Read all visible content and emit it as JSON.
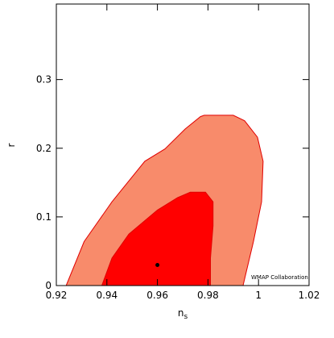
{
  "chart_data": {
    "type": "contour",
    "xlabel": "n",
    "xlabel_sub": "s",
    "ylabel": "r",
    "annotation": "WMAP Collaboration",
    "xlim": [
      0.92,
      1.02
    ],
    "ylim": [
      0,
      0.41
    ],
    "xticks": [
      0.92,
      0.94,
      0.96,
      0.98,
      1,
      1.02
    ],
    "yticks": [
      0,
      0.1,
      0.2,
      0.3
    ],
    "series": [
      {
        "color": "#f88b6b",
        "x": [
          0.9239,
          0.931,
          0.942,
          0.955,
          0.963,
          0.971,
          0.977,
          0.9785,
          0.99,
          0.9945,
          0.9996,
          1.0018,
          1.0012,
          0.998,
          0.9949,
          0.9939
        ],
        "values": [
          0,
          0.064,
          0.122,
          0.181,
          0.199,
          0.228,
          0.246,
          0.248,
          0.248,
          0.24,
          0.216,
          0.181,
          0.122,
          0.064,
          0.016,
          0
        ]
      },
      {
        "color": "#ff0000",
        "x": [
          0.938,
          0.942,
          0.9487,
          0.96,
          0.968,
          0.973,
          0.979,
          0.982,
          0.982,
          0.981,
          0.981
        ],
        "values": [
          0,
          0.04,
          0.075,
          0.11,
          0.128,
          0.136,
          0.136,
          0.122,
          0.087,
          0.04,
          0
        ]
      }
    ],
    "point": {
      "x": 0.96,
      "y": 0.03,
      "color": "#000000"
    }
  }
}
